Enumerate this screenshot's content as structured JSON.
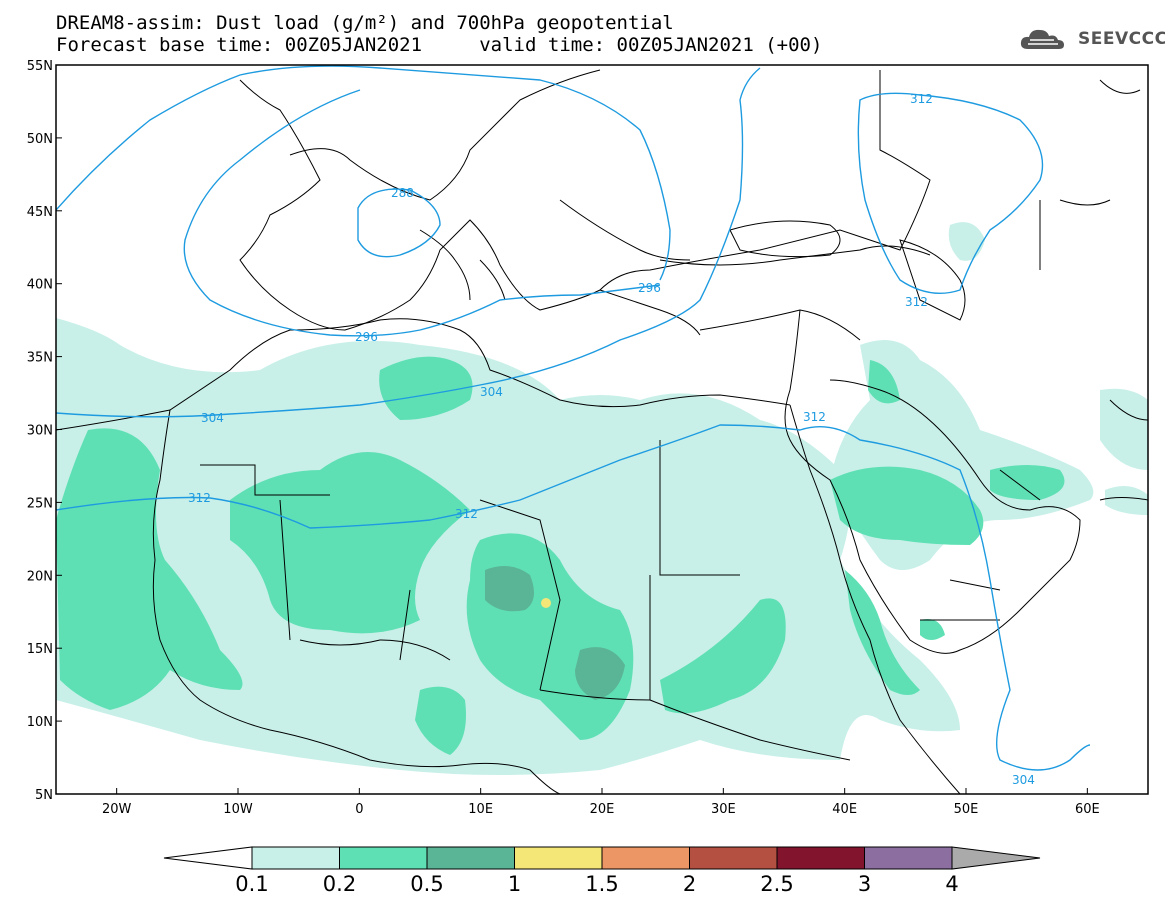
{
  "header": {
    "title_line1": "DREAM8-assim: Dust load (g/m²) and 700hPa geopotential",
    "title_line2": "Forecast base time: 00Z05JAN2021     valid time: 00Z05JAN2021 (+00)"
  },
  "logo": {
    "text": "SEEVCCC",
    "icon": "cloud-icon"
  },
  "map": {
    "lon_range": [
      -25,
      65
    ],
    "lat_range": [
      5,
      55
    ],
    "lat_ticks": [
      "55N",
      "50N",
      "45N",
      "40N",
      "35N",
      "30N",
      "25N",
      "20N",
      "15N",
      "10N",
      "5N"
    ],
    "lon_ticks": [
      "20W",
      "10W",
      "0",
      "10E",
      "20E",
      "30E",
      "40E",
      "50E",
      "60E"
    ],
    "contour_labels": [
      "312",
      "288",
      "296",
      "296",
      "304",
      "304",
      "312",
      "312",
      "312",
      "312",
      "304"
    ],
    "contour_color": "#1e9be0",
    "border_color": "#000000"
  },
  "colorbar": {
    "labels": [
      "0.1",
      "0.2",
      "0.5",
      "1",
      "1.5",
      "2",
      "2.5",
      "3",
      "4"
    ],
    "colors": [
      "#c8f0e8",
      "#5fe0b4",
      "#5ab496",
      "#f5e678",
      "#eb9664",
      "#b45041",
      "#82142d",
      "#8c6ea0"
    ],
    "under_color": "#ffffff",
    "over_color": "#aaaaaa"
  },
  "colors": {
    "dust_light": "#c8f0e8",
    "dust_medium": "#5fe0b4",
    "dust_heavy": "#5ab496",
    "dust_yellow": "#f5e678"
  }
}
